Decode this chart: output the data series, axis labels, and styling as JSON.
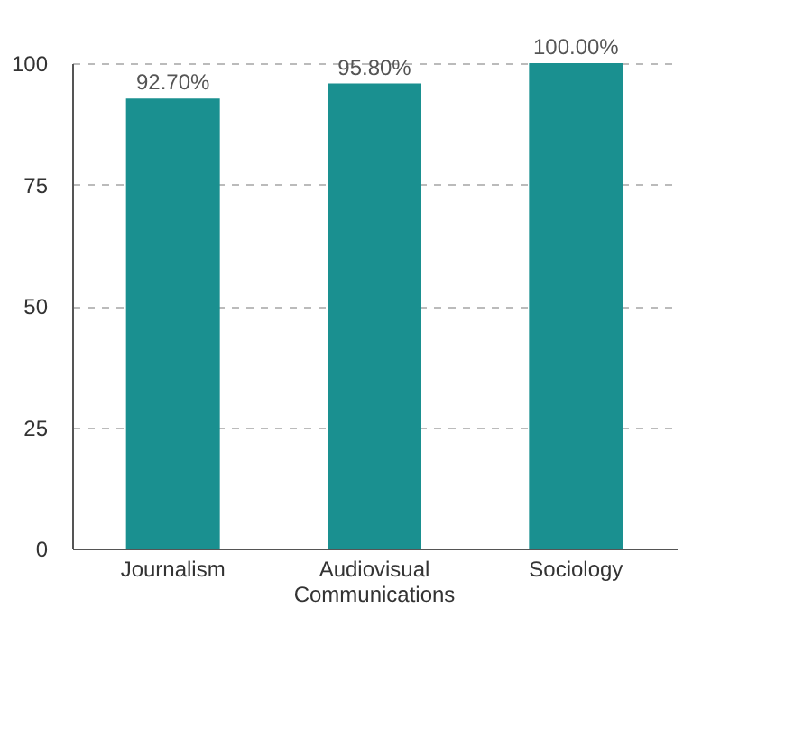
{
  "chart_data": {
    "type": "bar",
    "categories": [
      "Journalism",
      "Audiovisual Communications",
      "Sociology"
    ],
    "values": [
      92.7,
      95.8,
      100
    ],
    "value_labels": [
      "92.70%",
      "95.80%",
      "100.00%"
    ],
    "color": "#1a9090",
    "ylim": [
      0,
      100
    ],
    "yticks": [
      0,
      25,
      50,
      75,
      100
    ],
    "grid": "y"
  }
}
